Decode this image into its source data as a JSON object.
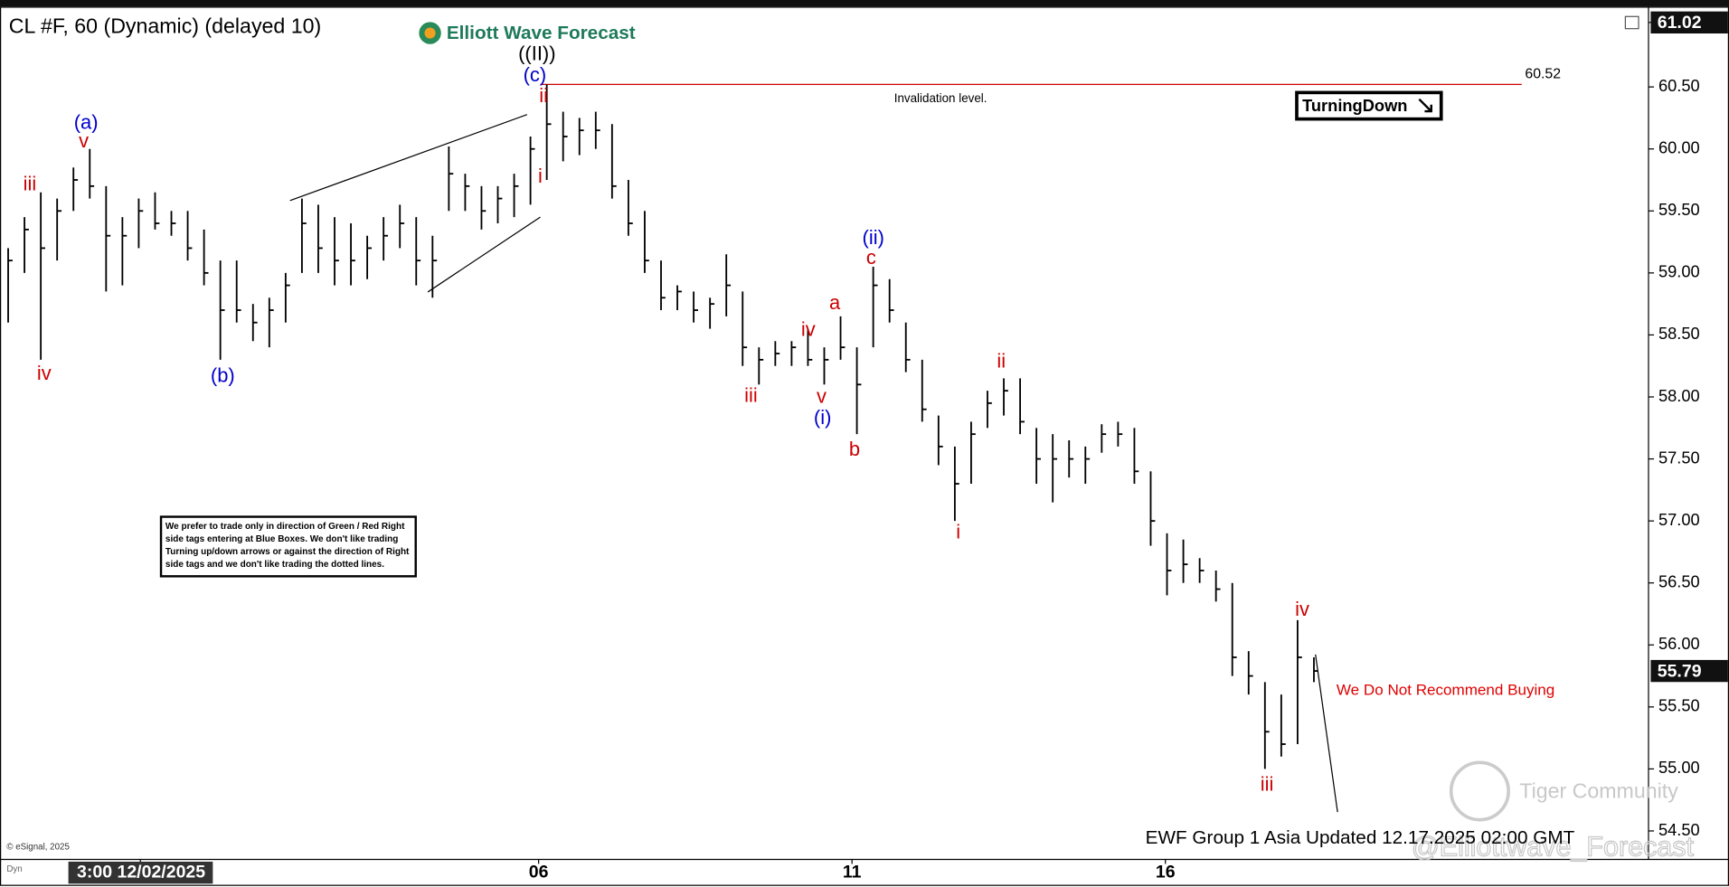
{
  "chart_data": {
    "type": "ohlc",
    "title": "CL #F, 60 (Dynamic) (delayed 10)",
    "brand": "Elliott Wave Forecast",
    "color": "#000000",
    "x": [
      0,
      1,
      2,
      3,
      4,
      5,
      6,
      7,
      8,
      9,
      10,
      11,
      12,
      13,
      14,
      15,
      16,
      17,
      18,
      19,
      20,
      21,
      22,
      23,
      24,
      25,
      26,
      27,
      28,
      29,
      30,
      31,
      32,
      33,
      34,
      35,
      36,
      37,
      38,
      39,
      40,
      41,
      42,
      43,
      44,
      45,
      46,
      47,
      48,
      49,
      50,
      51,
      52,
      53,
      54,
      55,
      56,
      57,
      58,
      59,
      60,
      61,
      62,
      63,
      64,
      65,
      66,
      67,
      68,
      69,
      70,
      71,
      72,
      73,
      74,
      75,
      76,
      77,
      78,
      79,
      80
    ],
    "high": [
      59.2,
      59.45,
      59.65,
      59.6,
      59.85,
      60.0,
      59.7,
      59.45,
      59.6,
      59.65,
      59.5,
      59.5,
      59.35,
      59.1,
      59.1,
      58.75,
      58.8,
      59.0,
      59.6,
      59.55,
      59.45,
      59.4,
      59.3,
      59.45,
      59.55,
      59.45,
      59.3,
      60.02,
      59.8,
      59.7,
      59.7,
      59.8,
      60.1,
      60.52,
      60.3,
      60.25,
      60.3,
      60.2,
      59.75,
      59.5,
      59.1,
      58.9,
      58.85,
      58.8,
      59.15,
      58.85,
      58.4,
      58.45,
      58.45,
      58.55,
      58.4,
      58.65,
      58.4,
      59.05,
      58.95,
      58.6,
      58.3,
      57.85,
      57.6,
      57.8,
      58.05,
      58.15,
      58.15,
      57.75,
      57.7,
      57.65,
      57.6,
      57.78,
      57.8,
      57.75,
      57.4,
      56.9,
      56.85,
      56.7,
      56.6,
      56.5,
      55.95,
      55.7,
      55.6,
      56.2,
      55.9
    ],
    "low": [
      58.6,
      59.0,
      58.3,
      59.1,
      59.5,
      59.6,
      58.85,
      58.9,
      59.2,
      59.35,
      59.3,
      59.1,
      58.9,
      58.3,
      58.6,
      58.45,
      58.4,
      58.6,
      59.0,
      59.0,
      58.9,
      58.9,
      58.95,
      59.1,
      59.2,
      58.9,
      58.8,
      59.5,
      59.5,
      59.35,
      59.4,
      59.45,
      59.55,
      59.75,
      59.9,
      59.95,
      60.0,
      59.6,
      59.3,
      59.0,
      58.7,
      58.7,
      58.6,
      58.55,
      58.65,
      58.25,
      58.1,
      58.25,
      58.25,
      58.25,
      58.1,
      58.3,
      57.7,
      58.4,
      58.6,
      58.2,
      57.8,
      57.45,
      57.0,
      57.3,
      57.75,
      57.85,
      57.7,
      57.3,
      57.15,
      57.35,
      57.3,
      57.55,
      57.6,
      57.3,
      56.8,
      56.4,
      56.5,
      56.5,
      56.35,
      55.75,
      55.6,
      55.0,
      55.1,
      55.2,
      55.7
    ],
    "close": [
      59.1,
      59.35,
      59.2,
      59.5,
      59.75,
      59.7,
      59.3,
      59.3,
      59.5,
      59.4,
      59.4,
      59.2,
      59.0,
      58.7,
      58.7,
      58.6,
      58.7,
      58.9,
      59.4,
      59.2,
      59.1,
      59.1,
      59.2,
      59.3,
      59.4,
      59.1,
      59.1,
      59.8,
      59.7,
      59.5,
      59.6,
      59.7,
      60.0,
      60.2,
      60.1,
      60.15,
      60.15,
      59.7,
      59.4,
      59.1,
      58.8,
      58.85,
      58.7,
      58.75,
      58.9,
      58.4,
      58.3,
      58.35,
      58.4,
      58.3,
      58.3,
      58.4,
      58.1,
      58.9,
      58.7,
      58.3,
      57.9,
      57.6,
      57.3,
      57.7,
      57.95,
      58.05,
      57.8,
      57.5,
      57.5,
      57.5,
      57.5,
      57.7,
      57.7,
      57.4,
      57.0,
      56.6,
      56.65,
      56.6,
      56.45,
      55.9,
      55.75,
      55.3,
      55.2,
      55.9,
      55.79
    ],
    "xlim": [
      -0.5,
      100.5
    ],
    "xticks": [
      {
        "value": 8.1,
        "label": "3:00 12/02/2025"
      },
      {
        "value": 32.5,
        "label": "06"
      },
      {
        "value": 51.7,
        "label": "11"
      },
      {
        "value": 70.9,
        "label": "16"
      }
    ],
    "ylim": [
      54.27,
      61.13
    ],
    "yticks": [
      {
        "value": 54.5,
        "label": "54.50"
      },
      {
        "value": 55,
        "label": "55.00"
      },
      {
        "value": 55.5,
        "label": "55.50"
      },
      {
        "value": 56,
        "label": "56.00"
      },
      {
        "value": 56.5,
        "label": "56.50"
      },
      {
        "value": 57,
        "label": "57.00"
      },
      {
        "value": 57.5,
        "label": "57.50"
      },
      {
        "value": 58,
        "label": "58.00"
      },
      {
        "value": 58.5,
        "label": "58.50"
      },
      {
        "value": 59,
        "label": "59.00"
      },
      {
        "value": 59.5,
        "label": "59.50"
      },
      {
        "value": 60,
        "label": "60.00"
      },
      {
        "value": 60.5,
        "label": "60.50"
      },
      61.02
    ],
    "last_price": 55.79,
    "invalidation_level": 60.52,
    "invalidation_label": "Invalidation level.",
    "signal": "TurningDown",
    "annotations": [
      {
        "text": "((II))",
        "color": "#000000"
      },
      {
        "text": "(c)",
        "color": "#0000cc"
      },
      {
        "text": "ii",
        "color": "#cc0000"
      },
      {
        "text": "i",
        "color": "#cc0000"
      },
      {
        "text": "(a)",
        "color": "#0000cc"
      },
      {
        "text": "v",
        "color": "#cc0000"
      },
      {
        "text": "iii",
        "color": "#cc0000"
      },
      {
        "text": "iv",
        "color": "#cc0000"
      },
      {
        "text": "(b)",
        "color": "#0000cc"
      },
      {
        "text": "iii",
        "color": "#cc0000"
      },
      {
        "text": "iv",
        "color": "#cc0000"
      },
      {
        "text": "v",
        "color": "#cc0000"
      },
      {
        "text": "(i)",
        "color": "#0000cc"
      },
      {
        "text": "a",
        "color": "#cc0000"
      },
      {
        "text": "b",
        "color": "#cc0000"
      },
      {
        "text": "c",
        "color": "#cc0000"
      },
      {
        "text": "(ii)",
        "color": "#0000cc"
      },
      {
        "text": "ii",
        "color": "#cc0000"
      },
      {
        "text": "i",
        "color": "#cc0000"
      },
      {
        "text": "iv",
        "color": "#cc0000"
      },
      {
        "text": "iii",
        "color": "#cc0000"
      }
    ],
    "notice": [
      "We prefer to trade only in direction of Green / Red Right",
      "side tags entering at Blue Boxes. We don't like trading",
      "Turning up/down arrows or against the direction of Right",
      "side tags and we don't like trading the dotted lines."
    ],
    "recommendation": "We Do Not Recommend Buying",
    "update_note": "EWF Group 1 Asia Updated 12.17.2025 02:00 GMT",
    "watermark": "Tiger Community",
    "handle": "@Elliottwave_Forecast",
    "copyright": "© eSignal, 2025",
    "mode": "Dyn"
  }
}
